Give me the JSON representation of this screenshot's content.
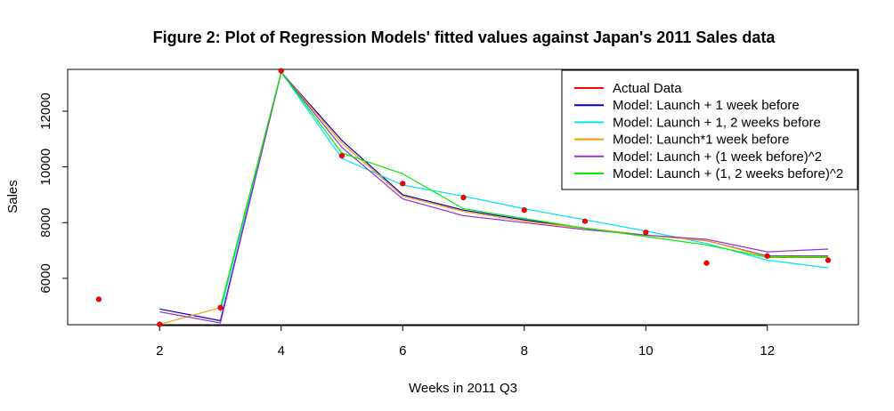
{
  "chart_data": {
    "type": "line",
    "title": "Figure 2: Plot of Regression Models' fitted values against Japan's 2011 Sales data",
    "xlabel": "Weeks in 2011 Q3",
    "ylabel": "Sales",
    "xlim": [
      1,
      13
    ],
    "ylim": [
      4400,
      13500
    ],
    "xticks": [
      2,
      4,
      6,
      8,
      10,
      12
    ],
    "yticks": [
      6000,
      8000,
      10000,
      12000
    ],
    "grid": false,
    "legend_position": "top-right",
    "actual": {
      "name": "Actual Data",
      "color": "#ff0000",
      "x": [
        1,
        2,
        3,
        4,
        5,
        6,
        7,
        8,
        9,
        10,
        11,
        12,
        13
      ],
      "y": [
        5250,
        4350,
        4950,
        13450,
        10400,
        9400,
        8900,
        8450,
        8050,
        7650,
        6550,
        6800,
        6650
      ]
    },
    "series": [
      {
        "name": "Model: Launch + 1 week before",
        "color": "#0000cc",
        "x": [
          2,
          3,
          4,
          5,
          6,
          7,
          8,
          9,
          10,
          11,
          12,
          13
        ],
        "y": [
          4900,
          4480,
          13400,
          10950,
          9000,
          8450,
          8100,
          7800,
          7550,
          7350,
          6800,
          6800
        ]
      },
      {
        "name": "Model: Launch + 1, 2 weeks before",
        "color": "#00e5ee",
        "x": [
          3,
          4,
          5,
          6,
          7,
          8,
          9,
          10,
          11,
          12,
          13
        ],
        "y": [
          4800,
          13400,
          10300,
          9350,
          8950,
          8500,
          8100,
          7700,
          7250,
          6650,
          6380
        ]
      },
      {
        "name": "Model: Launch*1 week before",
        "color": "#ff9900",
        "x": [
          2,
          3,
          4,
          5,
          6,
          7,
          8,
          9,
          10,
          11,
          12,
          13
        ],
        "y": [
          4350,
          4950,
          13400,
          10850,
          8950,
          8400,
          8050,
          7800,
          7550,
          7350,
          6780,
          6780
        ]
      },
      {
        "name": "Model: Launch + (1 week before)^2",
        "color": "#9933cc",
        "x": [
          2,
          3,
          4,
          5,
          6,
          7,
          8,
          9,
          10,
          11,
          12,
          13
        ],
        "y": [
          4800,
          4400,
          13400,
          10700,
          8850,
          8250,
          8000,
          7750,
          7550,
          7400,
          6950,
          7050
        ]
      },
      {
        "name": "Model: Launch + (1, 2 weeks before)^2",
        "color": "#00ee00",
        "x": [
          3,
          4,
          5,
          6,
          7,
          8,
          9,
          10,
          11,
          12,
          13
        ],
        "y": [
          4950,
          13400,
          10500,
          9750,
          8500,
          8150,
          7800,
          7500,
          7200,
          6750,
          6750
        ]
      }
    ]
  }
}
